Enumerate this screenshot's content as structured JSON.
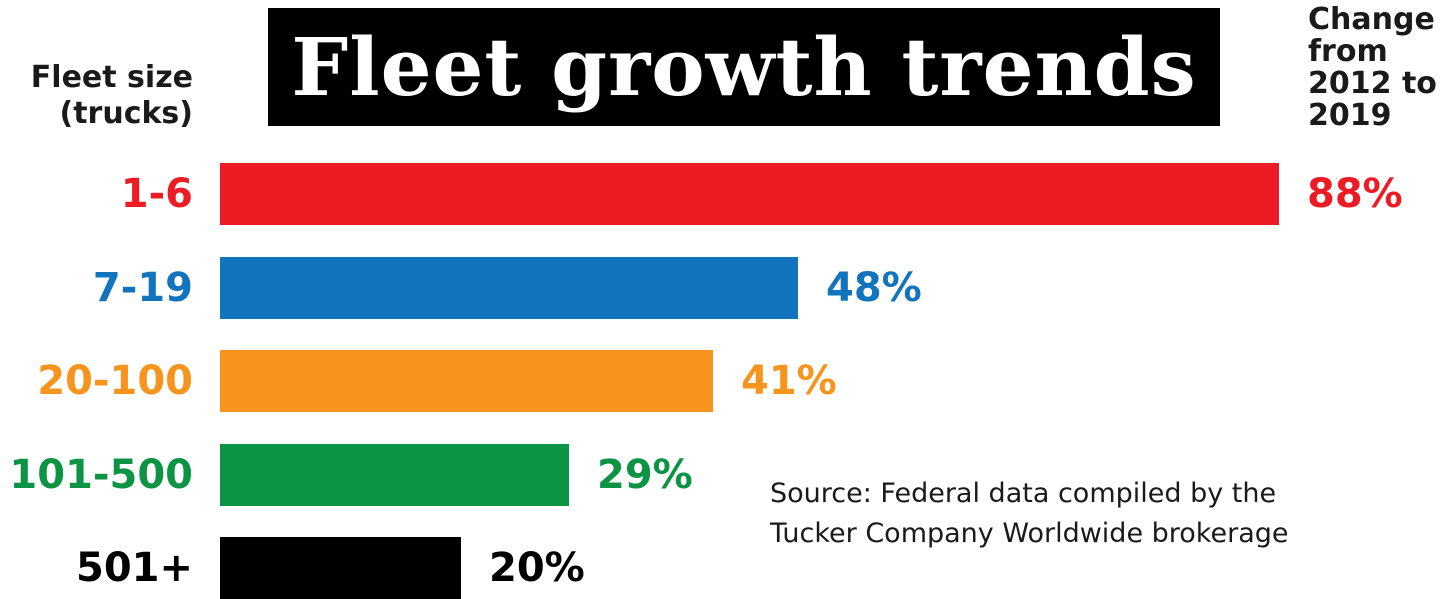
{
  "chart_data": {
    "type": "bar",
    "orientation": "horizontal",
    "title": "Fleet growth trends",
    "category_axis_label": [
      "Fleet size",
      "(trucks)"
    ],
    "value_axis_label": [
      "Change",
      "from",
      "2012 to",
      "2019"
    ],
    "categories": [
      "1-6",
      "7-19",
      "20-100",
      "101-500",
      "501+"
    ],
    "values": [
      88,
      48,
      41,
      29,
      20
    ],
    "value_labels": [
      "88%",
      "48%",
      "41%",
      "29%",
      "20%"
    ],
    "unit": "%",
    "xlim": [
      0,
      88
    ],
    "colors": [
      "#ed1c24",
      "#1174bd",
      "#f7941d",
      "#0c9444",
      "#000000"
    ],
    "source": [
      "Source: Federal data compiled by the",
      "Tucker Company Worldwide brokerage"
    ]
  }
}
